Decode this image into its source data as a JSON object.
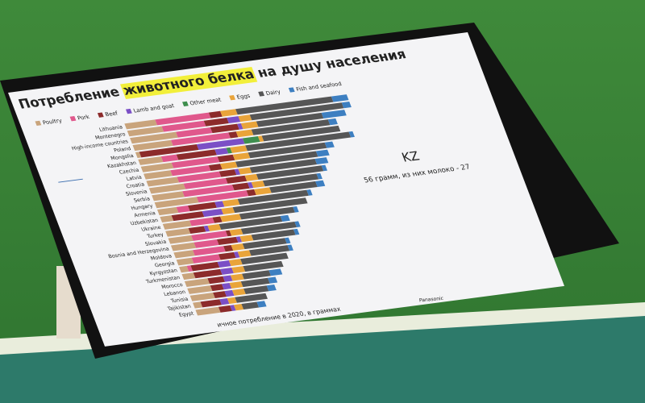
{
  "chart_data": {
    "type": "stacked-barh",
    "title": [
      "Потребление ",
      "животного белка",
      " на душу населения"
    ],
    "categories": [
      "Lithuania",
      "Montenegro",
      "High-income countries",
      "Poland",
      "Mongolia",
      "Kazakhstan",
      "Czechia",
      "Latvia",
      "Croatia",
      "Slovenia",
      "Serbia",
      "Hungary",
      "Armenia",
      "Uzbekistan",
      "Ukraine",
      "Turkey",
      "Slovakia",
      "Bosnia and Herzegovina",
      "Moldova",
      "Georgia",
      "Kyrgyzstan",
      "Turkmenistan",
      "Morocco",
      "Lebanon",
      "Tunisia",
      "Tajikistan",
      "Egypt"
    ],
    "series": [
      {
        "name": "Poultry",
        "color": "#c9a47c",
        "values": [
          8,
          9,
          12,
          10,
          1,
          6,
          8,
          7,
          8,
          9,
          8,
          11,
          5,
          3,
          7,
          6,
          6,
          6,
          5,
          4,
          2,
          3,
          6,
          6,
          6,
          2,
          6
        ]
      },
      {
        "name": "Pork",
        "color": "#e0588c",
        "values": [
          14,
          11,
          9,
          15,
          0,
          4,
          12,
          10,
          11,
          11,
          13,
          13,
          3,
          0,
          6,
          0,
          9,
          6,
          8,
          7,
          1,
          0,
          0,
          0,
          0,
          0,
          0
        ]
      },
      {
        "name": "Beef",
        "color": "#8c2b2b",
        "values": [
          3,
          6,
          7,
          2,
          15,
          10,
          4,
          3,
          4,
          5,
          4,
          2,
          7,
          8,
          2,
          4,
          1,
          5,
          2,
          4,
          7,
          7,
          4,
          3,
          3,
          5,
          3
        ]
      },
      {
        "name": "Lamb and goat",
        "color": "#7b4fc6",
        "values": [
          0,
          3,
          1,
          0,
          12,
          3,
          0,
          0,
          1,
          0,
          1,
          0,
          2,
          5,
          0,
          1,
          0,
          1,
          0,
          1,
          3,
          3,
          2,
          2,
          2,
          2,
          1
        ]
      },
      {
        "name": "Other meat",
        "color": "#3e8e4e",
        "values": [
          0,
          0,
          0,
          0,
          4,
          1,
          0,
          0,
          0,
          0,
          0,
          0,
          0,
          0,
          0,
          0,
          0,
          0,
          0,
          0,
          0,
          0,
          0,
          0,
          0,
          0,
          0
        ]
      },
      {
        "name": "Eggs",
        "color": "#e9a43a",
        "values": [
          4,
          3,
          4,
          4,
          1,
          4,
          4,
          4,
          3,
          3,
          3,
          4,
          4,
          3,
          5,
          3,
          3,
          3,
          3,
          3,
          3,
          3,
          3,
          3,
          3,
          2,
          2
        ]
      },
      {
        "name": "Dairy",
        "color": "#565656",
        "values": [
          25,
          24,
          17,
          20,
          20,
          27,
          20,
          21,
          17,
          17,
          14,
          12,
          18,
          19,
          14,
          16,
          14,
          11,
          11,
          10,
          12,
          10,
          7,
          7,
          6,
          8,
          4
        ]
      },
      {
        "name": "Fish and seafood",
        "color": "#3d7fc1",
        "values": [
          4,
          2,
          6,
          2,
          0,
          1,
          2,
          3,
          3,
          1,
          1,
          2,
          1,
          0,
          1,
          2,
          1,
          1,
          1,
          1,
          0,
          0,
          3,
          2,
          2,
          0,
          2
        ]
      }
    ],
    "xlim": [
      0,
      80
    ],
    "annotation": {
      "title": "KZ",
      "text": "56 грамм, из них молоко - 27"
    },
    "footnote": "ичное потребление в 2020, в граммах",
    "brand": "Panasonic"
  }
}
